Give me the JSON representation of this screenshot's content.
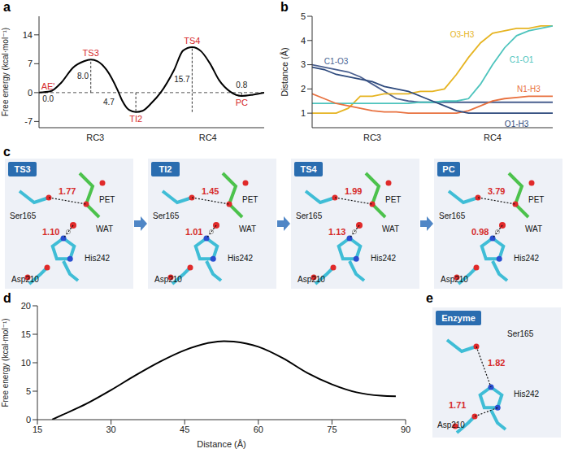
{
  "chart_data": [
    {
      "panel": "a",
      "type": "line",
      "y_label": "Free energy (kcal·mol⁻¹)",
      "color": "#000000",
      "x": [
        0,
        0.5,
        1,
        1.5,
        2,
        2.3,
        2.6,
        3,
        3.5,
        3.7,
        4,
        4.3,
        4.6,
        5,
        5.4,
        6,
        6.4,
        6.8,
        7.2,
        7.6,
        8,
        8.5,
        9,
        9.5,
        10
      ],
      "values": [
        0,
        0.3,
        2.5,
        6.0,
        7.6,
        8.0,
        7.6,
        5.5,
        0.5,
        -2.0,
        -4.2,
        -4.7,
        -4.4,
        -2.5,
        0,
        5.5,
        10.2,
        11.0,
        10.0,
        7.0,
        3.0,
        0.2,
        -0.8,
        -0.5,
        0
      ],
      "xlim": [
        0,
        10
      ],
      "xticks": [
        {
          "value": 2.5,
          "label": "RC3"
        },
        {
          "value": 7.5,
          "label": "RC4"
        }
      ],
      "ylim": [
        -8.5,
        18.5
      ],
      "yticks": [
        -7,
        0,
        7,
        14
      ],
      "reference_y": 0,
      "points": [
        {
          "label": "AE'",
          "value_label": "0.0",
          "x": 0.4,
          "y": 0
        },
        {
          "label": "TS3",
          "x": 2.3,
          "y": 8.0
        },
        {
          "label": "TI2",
          "x": 4.3,
          "y": -4.7
        },
        {
          "label": "TS4",
          "x": 6.8,
          "y": 11.0
        },
        {
          "label": "PC",
          "x": 9.0,
          "y": -0.8
        }
      ],
      "barriers": [
        {
          "label": "8.0",
          "x": 2.3,
          "from": 0,
          "to": 8.0
        },
        {
          "label": "4.7",
          "x": 4.3,
          "from": 0,
          "to": -4.7
        },
        {
          "label": "15.7",
          "x": 6.8,
          "from": -4.7,
          "to": 11.0
        },
        {
          "label": "0.8",
          "x": 9.0,
          "from": 0,
          "to": -0.8
        }
      ]
    },
    {
      "panel": "b",
      "type": "line",
      "y_label": "Distance (Å)",
      "x": [
        0,
        0.5,
        1,
        1.5,
        2,
        2.5,
        3,
        3.5,
        4,
        4.5,
        5,
        5.5,
        6,
        6.5,
        7,
        7.5,
        8,
        8.5,
        9,
        9.5,
        10
      ],
      "xlim": [
        0,
        10
      ],
      "xticks": [
        {
          "value": 2.5,
          "label": "RC3"
        },
        {
          "value": 7.5,
          "label": "RC4"
        }
      ],
      "ylim": [
        0.4,
        5
      ],
      "yticks": [
        1,
        2,
        3,
        4,
        5
      ],
      "series": [
        {
          "name": "C1-O3",
          "color": "#4a5f8f",
          "values": [
            3.0,
            2.9,
            2.8,
            2.7,
            2.5,
            2.2,
            1.9,
            1.6,
            1.5,
            1.45,
            1.45,
            1.45,
            1.45,
            1.45,
            1.45,
            1.45,
            1.45,
            1.45,
            1.45,
            1.45,
            1.45
          ]
        },
        {
          "name": "O3-H3",
          "color": "#e6b422",
          "values": [
            1.0,
            1.0,
            1.0,
            1.2,
            1.7,
            1.7,
            1.8,
            1.8,
            1.8,
            1.9,
            1.9,
            2.0,
            2.6,
            3.3,
            3.9,
            4.3,
            4.4,
            4.5,
            4.5,
            4.6,
            4.6
          ]
        },
        {
          "name": "C1-O1",
          "color": "#4dc4bd",
          "values": [
            1.4,
            1.4,
            1.4,
            1.4,
            1.4,
            1.4,
            1.4,
            1.4,
            1.4,
            1.45,
            1.45,
            1.5,
            1.5,
            1.6,
            2.2,
            3.0,
            3.7,
            4.2,
            4.4,
            4.5,
            4.6
          ]
        },
        {
          "name": "N1-H3",
          "color": "#e8713f",
          "values": [
            1.8,
            1.6,
            1.4,
            1.3,
            1.2,
            1.1,
            1.05,
            1.05,
            1.0,
            1.0,
            1.0,
            1.0,
            1.0,
            1.1,
            1.3,
            1.5,
            1.6,
            1.65,
            1.7,
            1.7,
            1.7
          ]
        },
        {
          "name": "O1-H3",
          "color": "#2e4a7d",
          "values": [
            2.9,
            2.8,
            2.6,
            2.5,
            2.4,
            2.3,
            2.1,
            2.0,
            1.9,
            1.7,
            1.5,
            1.3,
            1.1,
            1.0,
            1.0,
            1.0,
            1.0,
            1.0,
            1.0,
            1.0,
            1.0
          ]
        }
      ]
    },
    {
      "panel": "d",
      "type": "line",
      "x_label": "Distance (Å)",
      "y_label": "Free energy (kcal·mol⁻¹)",
      "color": "#000000",
      "x": [
        18,
        20,
        25,
        30,
        35,
        40,
        45,
        50,
        53,
        55,
        60,
        65,
        70,
        75,
        80,
        85,
        88
      ],
      "values": [
        0,
        0.8,
        2.8,
        5.2,
        7.8,
        10.2,
        12.2,
        13.5,
        13.8,
        13.7,
        12.8,
        10.8,
        8.2,
        6.2,
        4.8,
        4.2,
        4.1
      ],
      "xlim": [
        15,
        90
      ],
      "xticks": [
        15,
        30,
        45,
        60,
        75,
        90
      ],
      "ylim": [
        0,
        20
      ],
      "yticks": [
        0,
        5,
        10,
        15,
        20
      ]
    }
  ],
  "structures": [
    {
      "panel": "c",
      "frames": [
        {
          "title": "TS3",
          "residues": [
            "Ser165",
            "PET",
            "WAT",
            "His242",
            "Asp210"
          ],
          "distances": [
            "1.77",
            "1.10"
          ]
        },
        {
          "title": "TI2",
          "residues": [
            "Ser165",
            "PET",
            "WAT",
            "His242",
            "Asp210"
          ],
          "distances": [
            "1.45",
            "1.01"
          ]
        },
        {
          "title": "TS4",
          "residues": [
            "Ser165",
            "PET",
            "WAT",
            "His242",
            "Asp210"
          ],
          "distances": [
            "1.99",
            "1.13"
          ]
        },
        {
          "title": "PC",
          "residues": [
            "Ser165",
            "PET",
            "WAT",
            "His242",
            "Asp210"
          ],
          "distances": [
            "3.79",
            "0.98"
          ]
        }
      ]
    },
    {
      "panel": "e",
      "frames": [
        {
          "title": "Enzyme",
          "residues": [
            "Ser165",
            "His242",
            "Asp210"
          ],
          "distances": [
            "1.82",
            "1.71"
          ]
        }
      ]
    }
  ]
}
